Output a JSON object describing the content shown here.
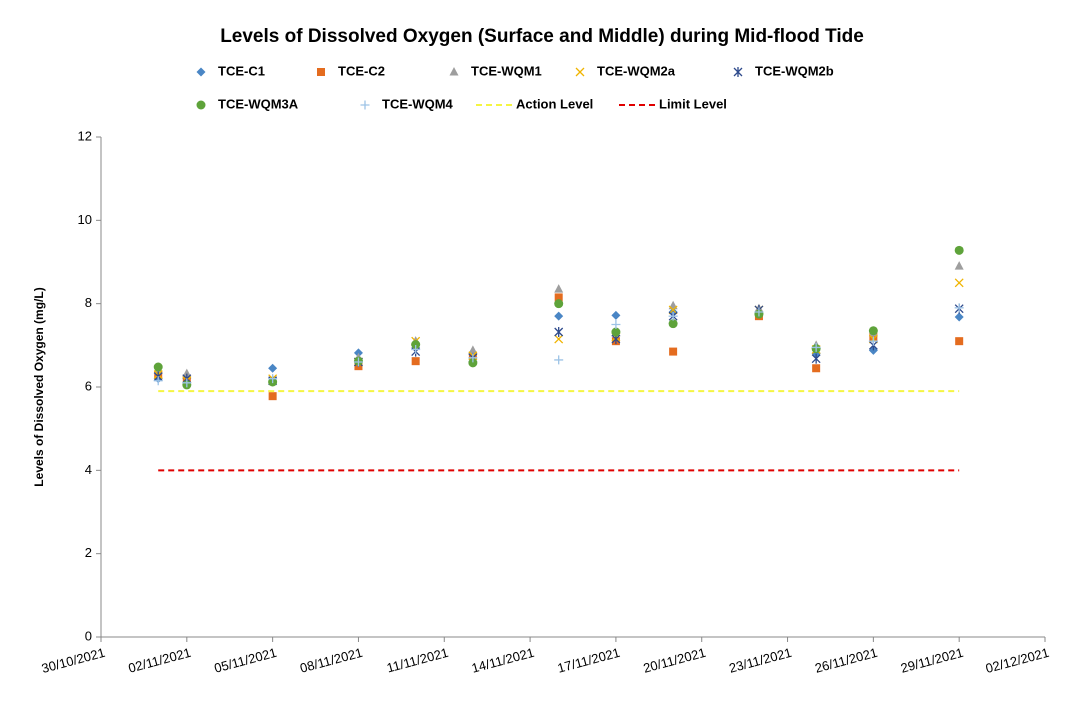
{
  "chart_data": {
    "type": "scatter",
    "title": "Levels of Dissolved Oxygen (Surface and Middle) during Mid-flood Tide",
    "y_label": "Levels of Dissolved Oxygen (mg/L)",
    "xlim": [
      "30/10/2021",
      "02/12/2021"
    ],
    "xticks": [
      "30/10/2021",
      "02/11/2021",
      "05/11/2021",
      "08/11/2021",
      "11/11/2021",
      "14/11/2021",
      "17/11/2021",
      "20/11/2021",
      "23/11/2021",
      "26/11/2021",
      "29/11/2021",
      "02/12/2021"
    ],
    "ylim": [
      0,
      12
    ],
    "yticks": [
      0,
      2,
      4,
      6,
      8,
      10,
      12
    ],
    "grid": false,
    "series": [
      {
        "name": "TCE-C1",
        "color": "#4a86c5",
        "marker": "diamond",
        "x": [
          "01/11/2021",
          "02/11/2021",
          "05/11/2021",
          "08/11/2021",
          "10/11/2021",
          "12/11/2021",
          "15/11/2021",
          "17/11/2021",
          "19/11/2021",
          "22/11/2021",
          "24/11/2021",
          "26/11/2021",
          "29/11/2021"
        ],
        "values": [
          6.2,
          6.2,
          6.45,
          6.82,
          7.0,
          6.8,
          7.7,
          7.72,
          7.8,
          7.8,
          6.8,
          6.88,
          7.68
        ]
      },
      {
        "name": "TCE-C2",
        "color": "#e46c1f",
        "marker": "square",
        "x": [
          "01/11/2021",
          "02/11/2021",
          "05/11/2021",
          "08/11/2021",
          "10/11/2021",
          "12/11/2021",
          "15/11/2021",
          "17/11/2021",
          "19/11/2021",
          "22/11/2021",
          "24/11/2021",
          "26/11/2021",
          "29/11/2021"
        ],
        "values": [
          6.3,
          6.2,
          5.78,
          6.5,
          6.62,
          6.75,
          8.15,
          7.1,
          6.85,
          7.7,
          6.45,
          7.2,
          7.1
        ]
      },
      {
        "name": "TCE-WQM1",
        "color": "#9e9e9e",
        "marker": "triangle",
        "x": [
          "01/11/2021",
          "02/11/2021",
          "05/11/2021",
          "08/11/2021",
          "10/11/2021",
          "12/11/2021",
          "15/11/2021",
          "17/11/2021",
          "19/11/2021",
          "22/11/2021",
          "24/11/2021",
          "26/11/2021",
          "29/11/2021"
        ],
        "values": [
          6.4,
          6.32,
          6.15,
          6.7,
          7.1,
          6.88,
          8.35,
          7.3,
          7.95,
          7.88,
          7.0,
          7.3,
          8.9
        ]
      },
      {
        "name": "TCE-WQM2a",
        "color": "#f0b400",
        "marker": "x",
        "x": [
          "01/11/2021",
          "02/11/2021",
          "05/11/2021",
          "08/11/2021",
          "10/11/2021",
          "12/11/2021",
          "15/11/2021",
          "17/11/2021",
          "19/11/2021",
          "22/11/2021",
          "24/11/2021",
          "26/11/2021",
          "29/11/2021"
        ],
        "values": [
          6.3,
          6.15,
          6.2,
          6.6,
          7.1,
          6.75,
          7.15,
          7.2,
          7.85,
          7.85,
          6.9,
          7.15,
          8.5
        ]
      },
      {
        "name": "TCE-WQM2b",
        "color": "#2e4a8c",
        "marker": "star",
        "x": [
          "01/11/2021",
          "02/11/2021",
          "05/11/2021",
          "08/11/2021",
          "10/11/2021",
          "12/11/2021",
          "15/11/2021",
          "17/11/2021",
          "19/11/2021",
          "22/11/2021",
          "24/11/2021",
          "26/11/2021",
          "29/11/2021"
        ],
        "values": [
          6.25,
          6.2,
          6.15,
          6.6,
          6.85,
          6.7,
          7.32,
          7.15,
          7.7,
          7.85,
          6.68,
          7.0,
          7.88
        ]
      },
      {
        "name": "TCE-WQM3A",
        "color": "#5ea33a",
        "marker": "circle",
        "x": [
          "01/11/2021",
          "02/11/2021",
          "05/11/2021",
          "08/11/2021",
          "10/11/2021",
          "12/11/2021",
          "15/11/2021",
          "17/11/2021",
          "19/11/2021",
          "22/11/2021",
          "24/11/2021",
          "26/11/2021",
          "29/11/2021"
        ],
        "values": [
          6.48,
          6.05,
          6.12,
          6.62,
          7.02,
          6.58,
          8.0,
          7.32,
          7.52,
          7.75,
          6.92,
          7.35,
          9.28
        ]
      },
      {
        "name": "TCE-WQM4",
        "color": "#9dc3e6",
        "marker": "plus",
        "x": [
          "01/11/2021",
          "02/11/2021",
          "05/11/2021",
          "08/11/2021",
          "10/11/2021",
          "12/11/2021",
          "15/11/2021",
          "17/11/2021",
          "19/11/2021",
          "22/11/2021",
          "24/11/2021",
          "26/11/2021",
          "29/11/2021"
        ],
        "values": [
          6.15,
          6.1,
          6.2,
          6.6,
          6.9,
          6.7,
          6.65,
          7.5,
          7.7,
          7.8,
          6.95,
          7.1,
          7.9
        ]
      },
      {
        "name": "Action Level",
        "color": "#f5f542",
        "marker": "dashed-line",
        "x": [
          "01/11/2021",
          "29/11/2021"
        ],
        "values": [
          5.9,
          5.9
        ]
      },
      {
        "name": "Limit Level",
        "color": "#e00000",
        "marker": "dashed-line",
        "x": [
          "01/11/2021",
          "29/11/2021"
        ],
        "values": [
          4,
          4
        ]
      }
    ]
  }
}
